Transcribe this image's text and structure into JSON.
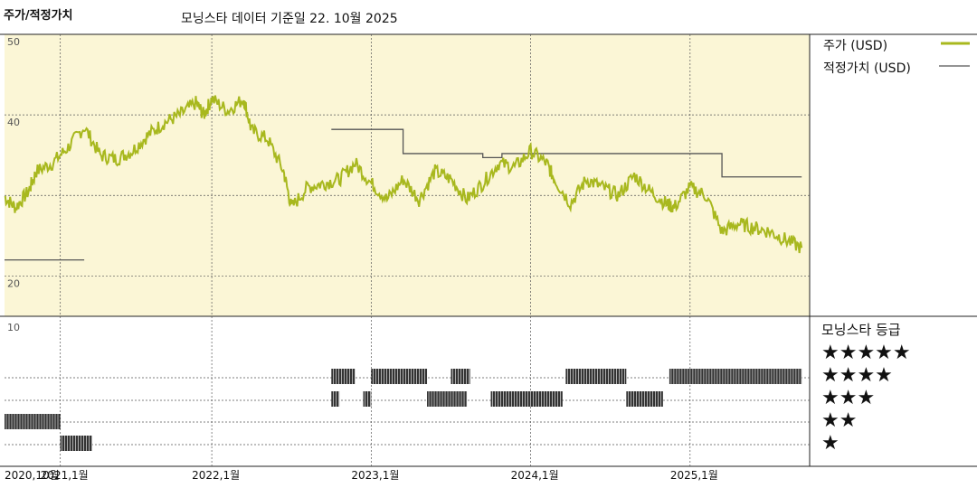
{
  "header": {
    "title": "주가/적정가치",
    "subtitle": "모닝스타 데이터 기준일 22. 10월 2025"
  },
  "legend": {
    "price_label": "주가 (USD)",
    "fair_label": "적정가치 (USD)",
    "rating_title": "모닝스타 등급",
    "stars": [
      "★★★★★",
      "★★★★",
      "★★★",
      "★★",
      "★"
    ]
  },
  "colors": {
    "price_line": "#a8b81e",
    "fair_line": "#555555",
    "upper_bg": "#fbf6d6",
    "grid": "#555555",
    "rating_bar": "#333333"
  },
  "chart_data": {
    "type": "line",
    "y_ticks": [
      "50",
      "40",
      "20",
      "10"
    ],
    "x_tick_labels": [
      "2020,10월",
      "2021,1월",
      "2022,1월",
      "2023,1월",
      "2024,1월",
      "2025,1월"
    ],
    "ylim": [
      15,
      50
    ],
    "series": [
      {
        "name": "주가 (USD)",
        "x": [
          2020.8,
          2020.87,
          2020.95,
          2021.0,
          2021.1,
          2021.2,
          2021.3,
          2021.4,
          2021.5,
          2021.6,
          2021.7,
          2021.8,
          2021.9,
          2022.0,
          2022.05,
          2022.1,
          2022.2,
          2022.3,
          2022.35,
          2022.45,
          2022.55,
          2022.6,
          2022.7,
          2022.8,
          2022.9,
          2023.0,
          2023.1,
          2023.2,
          2023.3,
          2023.4,
          2023.5,
          2023.6,
          2023.7,
          2023.8,
          2023.9,
          2024.0,
          2024.1,
          2024.2,
          2024.25,
          2024.35,
          2024.45,
          2024.55,
          2024.65,
          2024.75,
          2024.85,
          2024.95,
          2025.0,
          2025.1,
          2025.2,
          2025.3,
          2025.4,
          2025.5,
          2025.6,
          2025.7,
          2025.8
        ],
        "values": [
          29.8,
          28.5,
          30.5,
          33,
          34,
          36,
          38.5,
          35,
          34.5,
          35.5,
          37.5,
          39,
          40,
          41.5,
          40,
          42,
          40.5,
          42,
          38,
          37,
          33,
          28.5,
          31,
          31.5,
          32,
          34,
          31.5,
          29.5,
          32,
          29.5,
          33,
          32,
          29.5,
          31.5,
          34,
          33.5,
          35.5,
          34,
          32,
          29,
          32,
          31,
          30,
          32.5,
          30.5,
          29,
          28.5,
          31,
          30,
          25.5,
          26.5,
          26,
          25.5,
          24.5,
          23.5
        ]
      },
      {
        "name": "적정가치 (USD)",
        "x": [
          2020.8,
          2021.3,
          null,
          2022.85,
          2023.3,
          2023.3,
          2023.8,
          2023.8,
          2023.92,
          2023.92,
          2025.3,
          2025.3,
          2025.8
        ],
        "values": [
          22,
          22,
          null,
          38.2,
          38.2,
          35.2,
          35.2,
          34.7,
          34.7,
          35.2,
          35.2,
          32.3,
          32.3
        ]
      }
    ],
    "ratings": [
      {
        "stars": 1,
        "from": 2021.15,
        "to": 2021.35
      },
      {
        "stars": 2,
        "from": 2020.8,
        "to": 2021.15
      },
      {
        "stars": 3,
        "from": 2022.85,
        "to": 2022.9
      },
      {
        "stars": 3,
        "from": 2023.05,
        "to": 2023.1
      },
      {
        "stars": 4,
        "from": 2022.85,
        "to": 2023.0
      },
      {
        "stars": 4,
        "from": 2023.1,
        "to": 2023.45
      },
      {
        "stars": 3,
        "from": 2023.45,
        "to": 2023.7
      },
      {
        "stars": 4,
        "from": 2023.6,
        "to": 2023.72
      },
      {
        "stars": 3,
        "from": 2023.85,
        "to": 2024.3
      },
      {
        "stars": 4,
        "from": 2024.32,
        "to": 2024.7
      },
      {
        "stars": 3,
        "from": 2024.7,
        "to": 2024.93
      },
      {
        "stars": 4,
        "from": 2024.97,
        "to": 2025.8
      }
    ]
  }
}
